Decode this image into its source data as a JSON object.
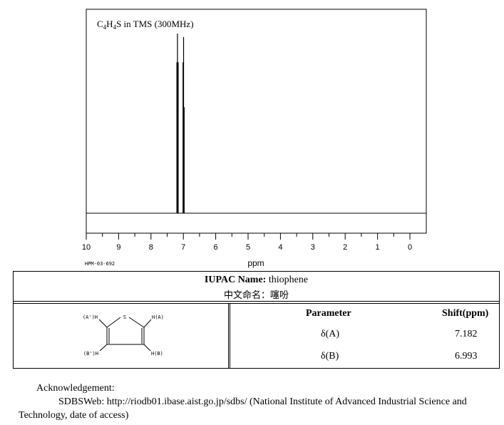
{
  "chart_data": {
    "type": "line",
    "title": "C4H4S in TMS (300MHz)",
    "title_parts": {
      "c": "C",
      "n1": "4",
      "h": "H",
      "n2": "4",
      "rest": "S in TMS (300MHz)"
    },
    "xlabel": "ppm",
    "x_ticks": [
      10,
      9,
      8,
      7,
      6,
      5,
      4,
      3,
      2,
      1,
      0
    ],
    "xlim": [
      10,
      0
    ],
    "ylim": [
      0,
      1
    ],
    "grid": false,
    "series": [
      {
        "peaks": [
          {
            "x": 7.2,
            "y": 0.84
          },
          {
            "x": 7.182,
            "y": 1.0
          },
          {
            "x": 7.16,
            "y": 0.84
          },
          {
            "x": 7.01,
            "y": 0.84
          },
          {
            "x": 6.993,
            "y": 0.98
          },
          {
            "x": 6.975,
            "y": 0.59
          }
        ]
      }
    ],
    "code": "HPM-03-692"
  },
  "compound": {
    "iupac_label": "IUPAC Name:",
    "iupac_value": "thiophene",
    "zh_name": "中文命名：噻吩"
  },
  "structure": {
    "label_a_prime": "(A')H",
    "label_a": "H(A)",
    "label_b_prime": "(B')H",
    "label_b": "H(B)",
    "label_s": "S"
  },
  "shift_table": {
    "header_parameter": "Parameter",
    "header_shift": "Shift(ppm)",
    "rows": [
      {
        "param": "δ(A)",
        "shift": "7.182"
      },
      {
        "param": "δ(B)",
        "shift": "6.993"
      }
    ]
  },
  "acknowledgement": {
    "heading": "Acknowledgement:",
    "line1": "SDBSWeb: http://riodb01.ibase.aist.go.jp/sdbs/ (National Institute of Advanced Industrial Science and",
    "line2": "Technology, date of access)"
  }
}
